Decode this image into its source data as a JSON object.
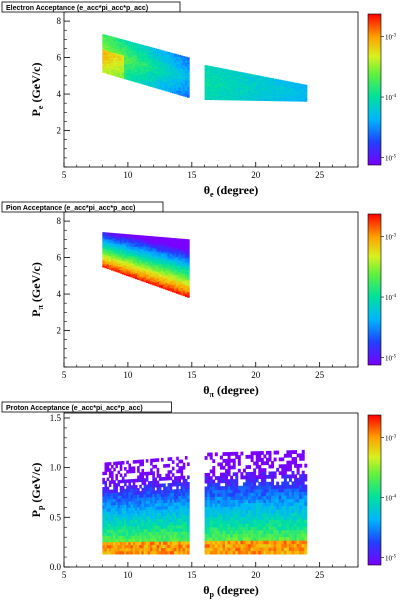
{
  "chart_data": [
    {
      "type": "heatmap",
      "title": "Electron Acceptance (e_acc*pi_acc*p_acc)",
      "xlabel_main": "θ",
      "xlabel_sub": "e",
      "xlabel_rest": " (degree)",
      "ylabel_main": "P",
      "ylabel_sub": "e",
      "ylabel_rest": " (GeV/c)",
      "xlim": [
        5,
        28
      ],
      "ylim": [
        0,
        8.5
      ],
      "xticks": [
        5,
        10,
        15,
        20,
        25
      ],
      "yticks": [
        2,
        4,
        6,
        8
      ],
      "colorbar": {
        "scale": "log",
        "labels": [
          {
            "base": "10",
            "exp": "-5"
          },
          {
            "base": "10",
            "exp": "-4"
          },
          {
            "base": "10",
            "exp": "-3"
          }
        ]
      },
      "regions": [
        {
          "theta": [
            8,
            14.8
          ],
          "p_top": [
            7.3,
            6.0
          ],
          "p_bottom": [
            5.2,
            3.8
          ],
          "peak": 0.6
        },
        {
          "theta": [
            16,
            24
          ],
          "p_top": [
            5.6,
            4.5
          ],
          "p_bottom": [
            3.7,
            3.6
          ],
          "peak": 0.45
        }
      ]
    },
    {
      "type": "heatmap",
      "title": "Pion Acceptance (e_acc*pi_acc*p_acc)",
      "xlabel_main": "θ",
      "xlabel_sub": "π",
      "xlabel_rest": " (degree)",
      "ylabel_main": "P",
      "ylabel_sub": "π",
      "ylabel_rest": " (GeV/c)",
      "xlim": [
        5,
        28
      ],
      "ylim": [
        0,
        8.5
      ],
      "xticks": [
        5,
        10,
        15,
        20,
        25
      ],
      "yticks": [
        2,
        4,
        6,
        8
      ],
      "colorbar": {
        "scale": "log",
        "labels": [
          {
            "base": "10",
            "exp": "-5"
          },
          {
            "base": "10",
            "exp": "-4"
          },
          {
            "base": "10",
            "exp": "-3"
          }
        ]
      },
      "regions": [
        {
          "theta": [
            8,
            14.8
          ],
          "p_top": [
            7.4,
            7.0
          ],
          "p_bottom": [
            5.5,
            3.8
          ],
          "peak": 0.9
        }
      ]
    },
    {
      "type": "heatmap",
      "title": "Proton Acceptance (e_acc*pi_acc*p_acc)",
      "xlabel_main": "θ",
      "xlabel_sub": "p",
      "xlabel_rest": " (degree)",
      "ylabel_main": "P",
      "ylabel_sub": "p",
      "ylabel_rest": " (GeV/c)",
      "xlim": [
        5,
        28
      ],
      "ylim": [
        0,
        1.55
      ],
      "xticks": [
        5,
        10,
        15,
        20,
        25
      ],
      "yticks": [
        0,
        0.5,
        1.0,
        1.5
      ],
      "colorbar": {
        "scale": "log",
        "labels": [
          {
            "base": "10",
            "exp": "-5"
          },
          {
            "base": "10",
            "exp": "-4"
          },
          {
            "base": "10",
            "exp": "-3"
          }
        ]
      },
      "regions": [
        {
          "theta": [
            8,
            14.8
          ],
          "p_top": [
            1.05,
            1.12
          ],
          "p_bottom": [
            0.13,
            0.13
          ],
          "peak": 0.95
        },
        {
          "theta": [
            16,
            24
          ],
          "p_top": [
            1.15,
            1.18
          ],
          "p_bottom": [
            0.13,
            0.13
          ],
          "peak": 0.95
        }
      ]
    }
  ]
}
